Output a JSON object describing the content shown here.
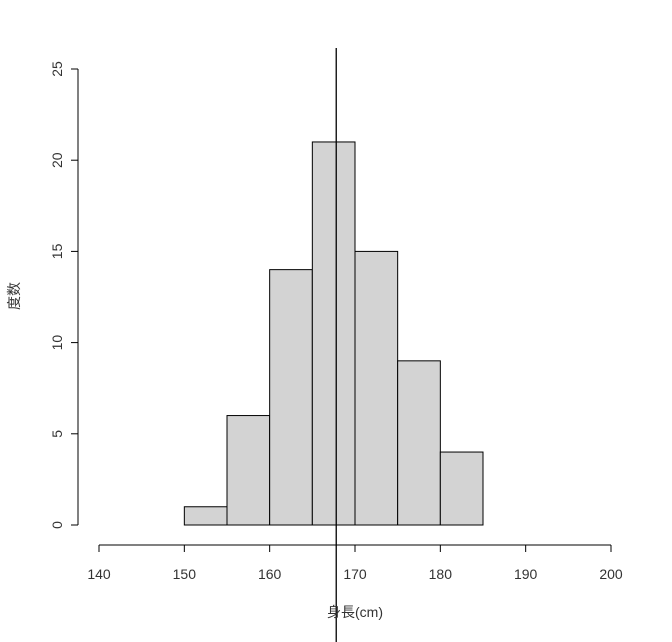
{
  "chart_data": {
    "type": "bar",
    "title": "",
    "xlabel": "身長(cm)",
    "ylabel": "度数",
    "bins": [
      {
        "x0": 150,
        "x1": 155,
        "count": 1
      },
      {
        "x0": 155,
        "x1": 160,
        "count": 6
      },
      {
        "x0": 160,
        "x1": 165,
        "count": 14
      },
      {
        "x0": 165,
        "x1": 170,
        "count": 21
      },
      {
        "x0": 170,
        "x1": 175,
        "count": 15
      },
      {
        "x0": 175,
        "x1": 180,
        "count": 9
      },
      {
        "x0": 180,
        "x1": 185,
        "count": 4
      }
    ],
    "xlim": [
      140,
      200
    ],
    "ylim": [
      0,
      25
    ],
    "x_ticks": [
      140,
      150,
      160,
      170,
      180,
      190,
      200
    ],
    "y_ticks": [
      0,
      5,
      10,
      15,
      20,
      25
    ],
    "mean_line": 167.8,
    "bar_color": "#d3d3d3",
    "line_color": "#000000",
    "grid": false
  }
}
